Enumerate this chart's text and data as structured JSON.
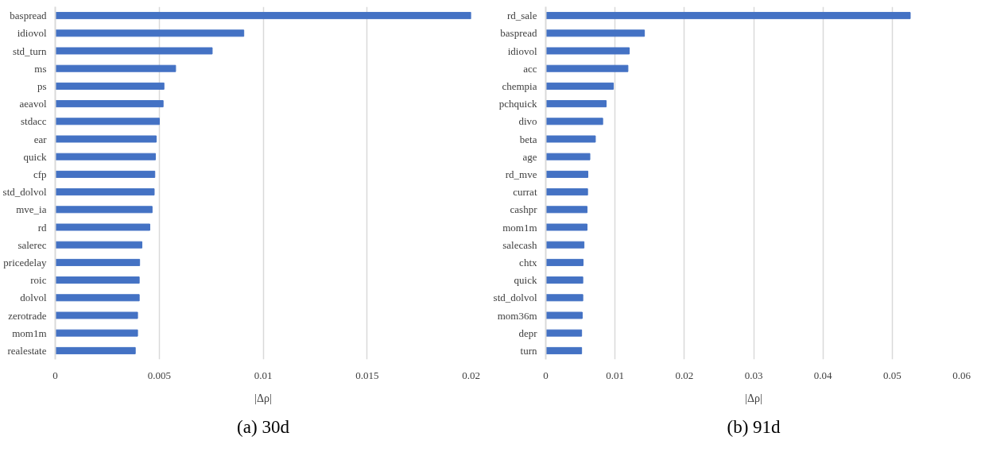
{
  "chart_data": [
    {
      "type": "bar",
      "orientation": "horizontal",
      "title": "(a) 30d",
      "xlabel": "|Δρ|",
      "categories": [
        "baspread",
        "idiovol",
        "std_turn",
        "ms",
        "ps",
        "aeavol",
        "stdacc",
        "ear",
        "quick",
        "cfp",
        "std_dolvol",
        "mve_ia",
        "rd",
        "salerec",
        "pricedelay",
        "roic",
        "dolvol",
        "zerotrade",
        "mom1m",
        "realestate"
      ],
      "values": [
        0.02,
        0.00907,
        0.00755,
        0.00579,
        0.00523,
        0.00519,
        0.00501,
        0.00486,
        0.00482,
        0.00479,
        0.00476,
        0.00466,
        0.00455,
        0.00417,
        0.00406,
        0.00404,
        0.00404,
        0.00396,
        0.00396,
        0.00385
      ],
      "color": "#4472c4",
      "xlim": [
        0,
        0.02
      ],
      "xticks": [
        0,
        0.005,
        0.01,
        0.015,
        0.02
      ],
      "grid": "x"
    },
    {
      "type": "bar",
      "orientation": "horizontal",
      "title": "(b) 91d",
      "xlabel": "|Δρ|",
      "categories": [
        "rd_sale",
        "baspread",
        "idiovol",
        "acc",
        "chempia",
        "pchquick",
        "divo",
        "beta",
        "age",
        "rd_mve",
        "currat",
        "cashpr",
        "mom1m",
        "salecash",
        "chtx",
        "quick",
        "std_dolvol",
        "mom36m",
        "depr",
        "turn"
      ],
      "values": [
        0.0526,
        0.01424,
        0.01206,
        0.01186,
        0.00976,
        0.00872,
        0.00822,
        0.00716,
        0.00637,
        0.00608,
        0.00604,
        0.00596,
        0.00596,
        0.00552,
        0.00539,
        0.00535,
        0.00535,
        0.00527,
        0.00518,
        0.00518
      ],
      "color": "#4472c4",
      "xlim": [
        0,
        0.06
      ],
      "xticks": [
        0,
        0.01,
        0.02,
        0.03,
        0.04,
        0.05,
        0.06
      ],
      "grid": "x"
    }
  ]
}
